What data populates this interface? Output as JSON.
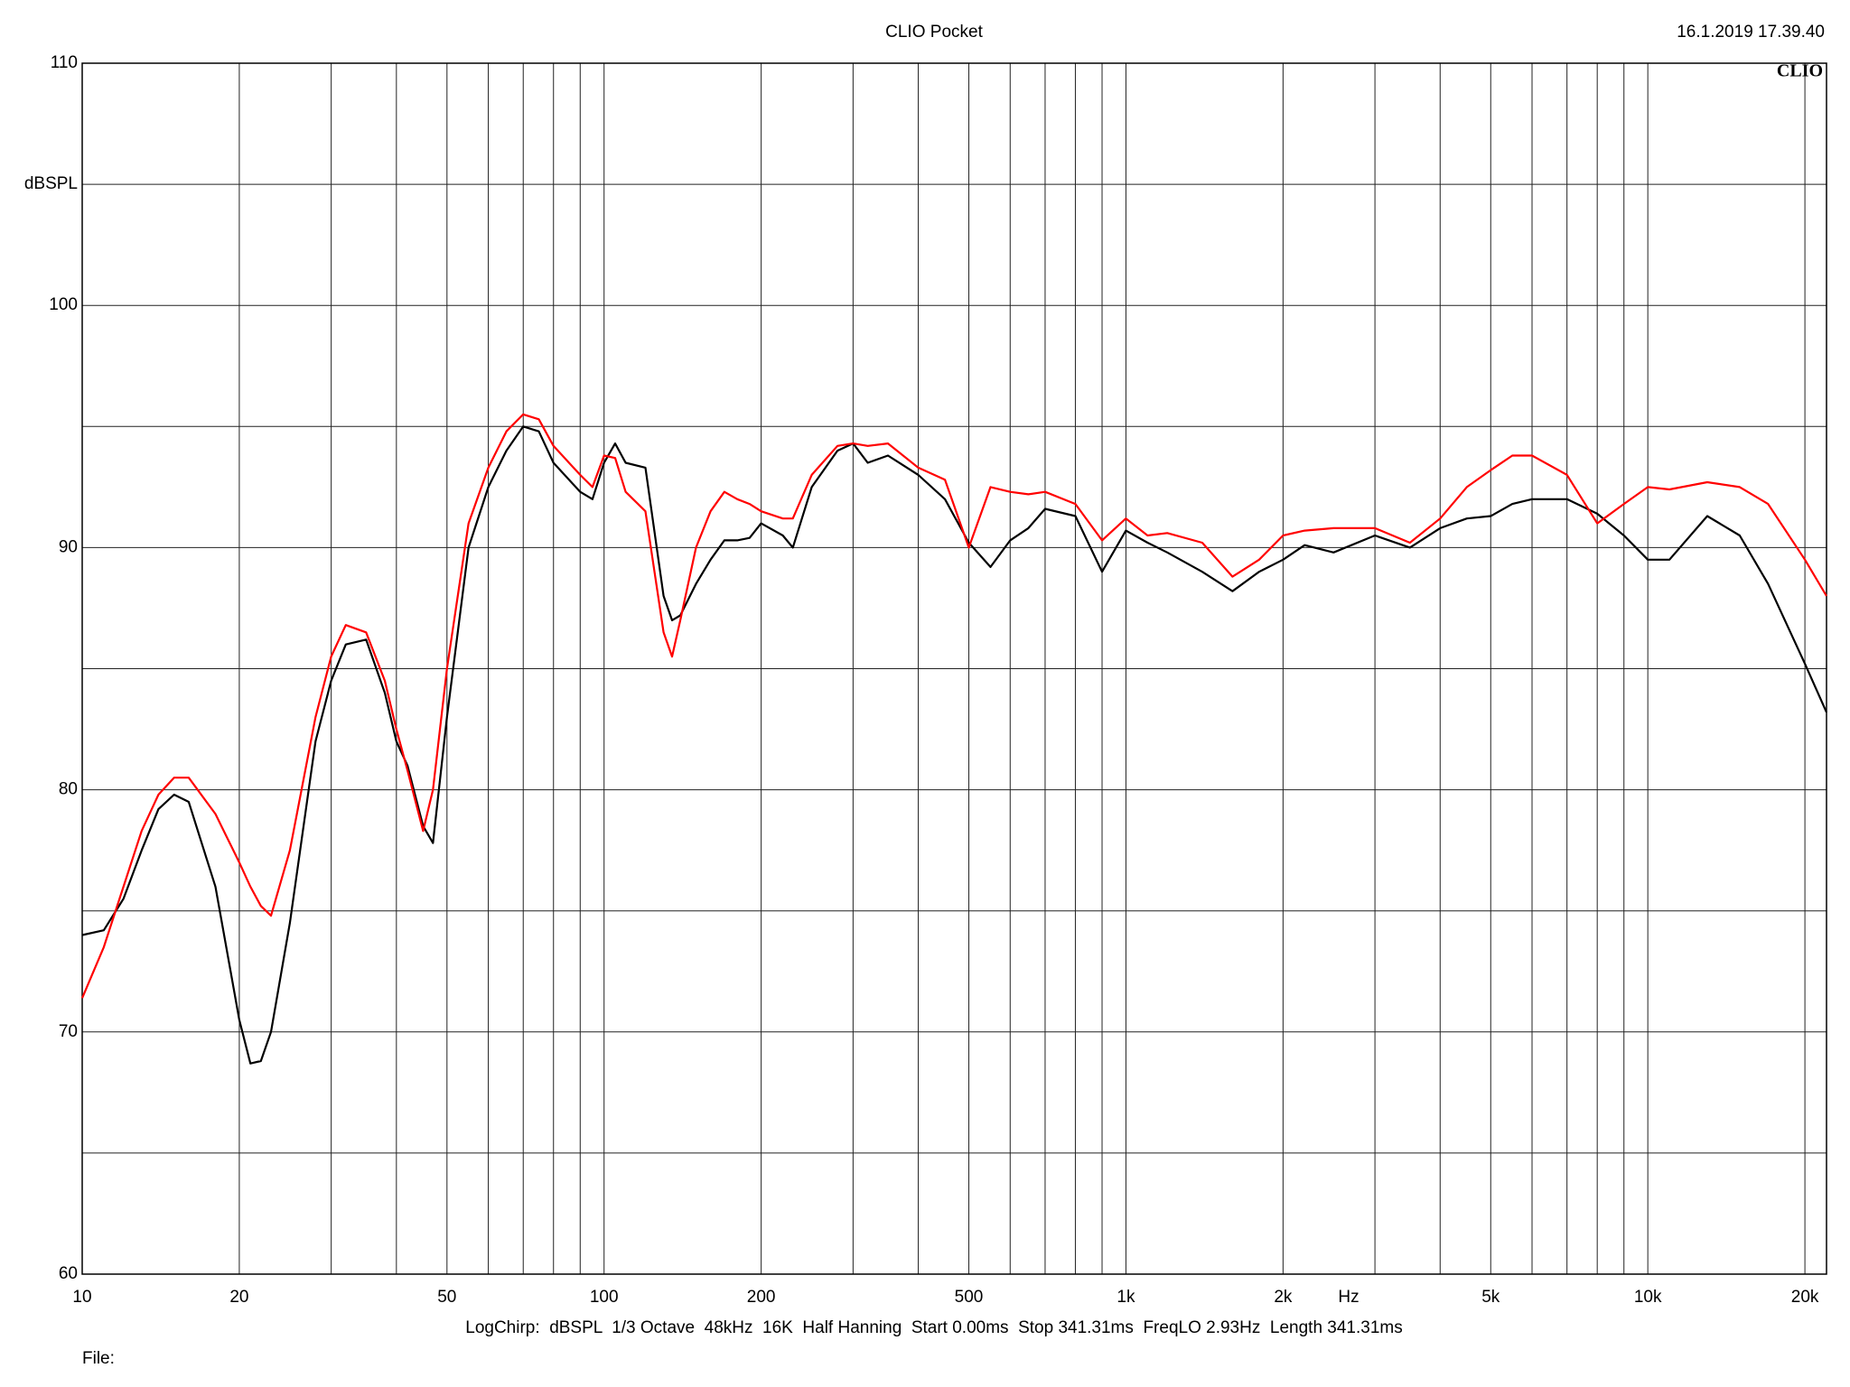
{
  "chart_data": {
    "type": "line",
    "title": "CLIO Pocket",
    "timestamp": "16.1.2019 17.39.40",
    "logo": "CLIO",
    "ylabel": "dBSPL",
    "xlabel": "Hz",
    "footer": "LogChirp:  dBSPL  1/3 Octave  48kHz  16K  Half Hanning  Start 0.00ms  Stop 341.31ms  FreqLO 2.93Hz  Length 341.31ms",
    "file_label": "File:",
    "log_x": true,
    "xlim": [
      10,
      22000
    ],
    "ylim": [
      60,
      110
    ],
    "xticks": [
      10,
      20,
      50,
      100,
      200,
      500,
      {
        "value": 1000,
        "label": "1k"
      },
      {
        "value": 2000,
        "label": "2k"
      },
      {
        "value": 5000,
        "label": "5k"
      },
      {
        "value": 10000,
        "label": "10k"
      },
      {
        "value": 20000,
        "label": "20k"
      }
    ],
    "xgrid": [
      30,
      40,
      60,
      70,
      80,
      90,
      300,
      400,
      600,
      700,
      800,
      900,
      3000,
      4000,
      6000,
      7000,
      8000,
      9000
    ],
    "yticks": [
      60,
      70,
      80,
      90,
      100,
      110
    ],
    "ygrid": [
      65,
      75,
      85,
      95,
      105
    ],
    "grid": true,
    "x": [
      10,
      11,
      12,
      13,
      14,
      15,
      16,
      18,
      20,
      21,
      22,
      23,
      25,
      28,
      30,
      32,
      35,
      38,
      40,
      42,
      45,
      47,
      50,
      55,
      60,
      65,
      70,
      75,
      80,
      90,
      95,
      100,
      105,
      110,
      120,
      130,
      135,
      140,
      150,
      160,
      170,
      180,
      190,
      200,
      220,
      230,
      250,
      280,
      300,
      320,
      350,
      400,
      450,
      500,
      550,
      600,
      650,
      700,
      800,
      900,
      1000,
      1100,
      1200,
      1400,
      1600,
      1800,
      2000,
      2200,
      2500,
      3000,
      3500,
      4000,
      4500,
      5000,
      5500,
      6000,
      7000,
      8000,
      9000,
      10000,
      11000,
      13000,
      15000,
      17000,
      20000,
      22000
    ],
    "series": [
      {
        "color": "#000000",
        "values": [
          74.0,
          74.2,
          75.5,
          77.5,
          79.2,
          79.8,
          79.5,
          76,
          70.5,
          68.7,
          68.8,
          70,
          74.5,
          82,
          84.5,
          86,
          86.2,
          84,
          82,
          81,
          78.5,
          77.8,
          83,
          90,
          92.5,
          94,
          95,
          94.8,
          93.5,
          92.3,
          92,
          93.5,
          94.3,
          93.5,
          93.3,
          88,
          87,
          87.2,
          88.5,
          89.5,
          90.3,
          90.3,
          90.4,
          91,
          90.5,
          90,
          92.5,
          94,
          94.3,
          93.5,
          93.8,
          93,
          92,
          90.2,
          89.2,
          90.3,
          90.8,
          91.6,
          91.3,
          89,
          90.7,
          90.2,
          89.8,
          89,
          88.2,
          89,
          89.5,
          90.1,
          89.8,
          90.5,
          90,
          90.8,
          91.2,
          91.3,
          91.8,
          92,
          92,
          91.4,
          90.5,
          89.5,
          89.5,
          91.3,
          90.5,
          88.5,
          85.2,
          83.2
        ]
      },
      {
        "color": "#ff0000",
        "values": [
          71.4,
          73.5,
          76,
          78.3,
          79.8,
          80.5,
          80.5,
          79,
          77,
          76,
          75.2,
          74.8,
          77.5,
          83,
          85.5,
          86.8,
          86.5,
          84.5,
          82.5,
          80.8,
          78.3,
          80,
          85,
          91,
          93.3,
          94.8,
          95.5,
          95.3,
          94.2,
          93,
          92.5,
          93.8,
          93.7,
          92.3,
          91.5,
          86.5,
          85.5,
          87,
          90,
          91.5,
          92.3,
          92,
          91.8,
          91.5,
          91.2,
          91.2,
          93,
          94.2,
          94.3,
          94.2,
          94.3,
          93.3,
          92.8,
          90,
          92.5,
          92.3,
          92.2,
          92.3,
          91.8,
          90.3,
          91.2,
          90.5,
          90.6,
          90.2,
          88.8,
          89.5,
          90.5,
          90.7,
          90.8,
          90.8,
          90.2,
          91.2,
          92.5,
          93.2,
          93.8,
          93.8,
          93,
          91,
          91.8,
          92.5,
          92.4,
          92.7,
          92.5,
          91.8,
          89.5,
          88
        ]
      }
    ]
  }
}
